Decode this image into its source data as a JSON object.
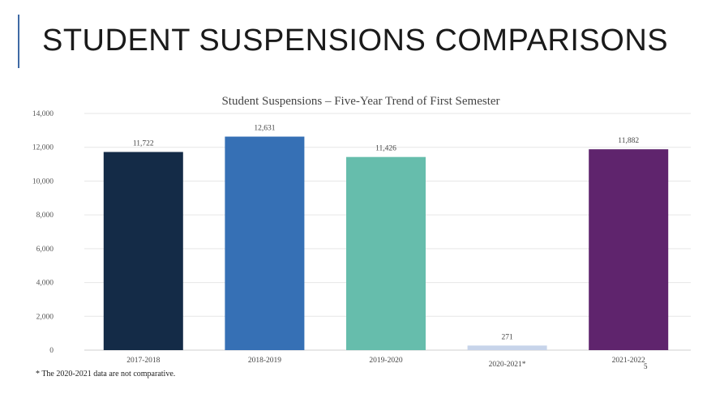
{
  "slide": {
    "title": "STUDENT SUSPENSIONS COMPARISONS",
    "footnote": "* The 2020-2021 data are not comparative.",
    "page_number": "5",
    "accent_color": "#3f6aa5"
  },
  "chart_data": {
    "type": "bar",
    "title": "Student Suspensions – Five-Year Trend of First Semester",
    "xlabel": "",
    "ylabel": "",
    "categories": [
      "2017-2018",
      "2018-2019",
      "2019-2020",
      "2020-2021*",
      "2021-2022"
    ],
    "values": [
      11722,
      12631,
      11426,
      271,
      11882
    ],
    "data_labels": [
      "11,722",
      "12,631",
      "11,426",
      "271",
      "11,882"
    ],
    "bar_colors": [
      "#142b47",
      "#3670b5",
      "#66bdac",
      "#c7d4ea",
      "#5f246d"
    ],
    "ylim": [
      0,
      14000
    ],
    "yticks": [
      0,
      2000,
      4000,
      6000,
      8000,
      10000,
      12000,
      14000
    ],
    "ytick_labels": [
      "0",
      "2,000",
      "4,000",
      "6,000",
      "8,000",
      "10,000",
      "12,000",
      "14,000"
    ],
    "grid": true,
    "legend": "none"
  }
}
